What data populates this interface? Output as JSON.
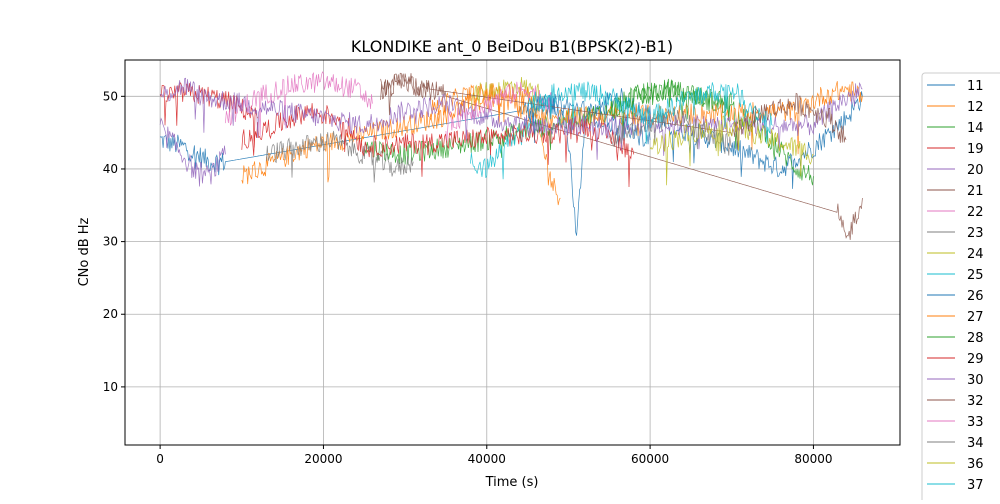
{
  "chart_data": {
    "type": "line",
    "title": "KLONDIKE ant_0 BeiDou B1(BPSK(2)-B1)",
    "xlabel": "Time (s)",
    "ylabel": "CNo dB Hz",
    "xlim": [
      -4300,
      90600
    ],
    "ylim": [
      2,
      55
    ],
    "xticks": [
      0,
      20000,
      40000,
      60000,
      80000
    ],
    "yticks": [
      10,
      20,
      30,
      40,
      50
    ],
    "grid": true,
    "legend_position": "right-outside",
    "series": [
      {
        "name": "11",
        "color": "#1f77b4",
        "x": [
          0,
          3000,
          6000,
          8000,
          44000,
          48000,
          50000,
          51000,
          52000,
          56000,
          62000,
          68000,
          72000,
          76000,
          80000,
          84000,
          86000
        ],
        "y": [
          44,
          43,
          41,
          41,
          48,
          49,
          45,
          30,
          47,
          50,
          46,
          44,
          42,
          40,
          43,
          47,
          50
        ]
      },
      {
        "name": "12",
        "color": "#ff7f0e",
        "x": [
          10000,
          14000,
          18000,
          22000,
          26000,
          30000,
          34000,
          38000,
          42000,
          46000,
          48000,
          49000
        ],
        "y": [
          39,
          41,
          43,
          44,
          45,
          46,
          47,
          49,
          50,
          47,
          38,
          36
        ]
      },
      {
        "name": "14",
        "color": "#2ca02c",
        "x": [
          25000,
          30000,
          35000,
          40000,
          55000,
          58000,
          62000,
          66000,
          70000,
          74000,
          78000,
          80000
        ],
        "y": [
          43,
          42,
          43,
          44,
          48,
          50,
          51,
          50,
          48,
          45,
          40,
          39
        ]
      },
      {
        "name": "19",
        "color": "#d62728",
        "x": [
          0,
          3000,
          6000,
          9000,
          12000
        ],
        "y": [
          50,
          50.5,
          50,
          49,
          47
        ]
      },
      {
        "name": "20",
        "color": "#9467bd",
        "x": [
          0,
          2000,
          4000,
          6000,
          8000
        ],
        "y": [
          46,
          43,
          40,
          39,
          42
        ]
      },
      {
        "name": "21",
        "color": "#8c564b",
        "x": [
          27000,
          30000,
          33000,
          35000,
          83000,
          84000,
          85000,
          86000
        ],
        "y": [
          51,
          52,
          51,
          50,
          34,
          30,
          33,
          36
        ]
      },
      {
        "name": "22",
        "color": "#e377c2",
        "x": [
          8000,
          12000,
          16000,
          20000,
          24000,
          26000
        ],
        "y": [
          47,
          50,
          51.5,
          52,
          51,
          49
        ]
      },
      {
        "name": "23",
        "color": "#7f7f7f",
        "x": [
          13000,
          17000,
          21000,
          25000,
          29000,
          31000
        ],
        "y": [
          42,
          43,
          44,
          42,
          40,
          41
        ]
      },
      {
        "name": "24",
        "color": "#bcbd22",
        "x": [
          38000,
          41000,
          44000,
          47000
        ],
        "y": [
          50,
          51,
          51.5,
          50
        ]
      },
      {
        "name": "25",
        "color": "#17becf",
        "x": [
          38000,
          40000,
          42000,
          44000,
          46000,
          48000
        ],
        "y": [
          41,
          40,
          43,
          45,
          48,
          50
        ]
      },
      {
        "name": "26",
        "color": "#1f77b4",
        "x": [
          45000,
          48000,
          52000,
          56000,
          60000
        ],
        "y": [
          48,
          49,
          48,
          46,
          44
        ]
      },
      {
        "name": "27",
        "color": "#ff7f0e",
        "x": [
          33000,
          37000,
          41000,
          45000,
          47000,
          78000,
          81000,
          84000,
          86000
        ],
        "y": [
          48,
          50,
          50.5,
          50,
          47,
          48,
          50,
          51,
          50
        ]
      },
      {
        "name": "28",
        "color": "#2ca02c",
        "x": [
          55000,
          58000,
          62000,
          66000,
          70000
        ],
        "y": [
          48,
          50,
          51,
          50,
          49
        ]
      },
      {
        "name": "29",
        "color": "#d62728",
        "x": [
          10000,
          14000,
          18000,
          22000,
          25000,
          48000,
          52000,
          56000,
          58000
        ],
        "y": [
          44,
          46,
          48,
          47,
          43,
          45,
          46,
          44,
          42
        ]
      },
      {
        "name": "30",
        "color": "#9467bd",
        "x": [
          0,
          3000,
          5000,
          25000,
          30000,
          35000,
          40000,
          45000,
          80000,
          83000,
          86000
        ],
        "y": [
          50,
          51.5,
          50,
          46,
          48,
          49,
          47,
          46,
          46,
          49,
          51
        ]
      },
      {
        "name": "32",
        "color": "#8c564b",
        "x": [
          27000,
          30000,
          33000,
          70000,
          74000,
          78000,
          82000,
          84000
        ],
        "y": [
          51,
          52,
          51,
          45,
          48,
          49,
          47,
          44
        ]
      },
      {
        "name": "33",
        "color": "#e377c2",
        "x": [
          35000,
          38000,
          42000,
          45000,
          48000
        ],
        "y": [
          46,
          48,
          50,
          51,
          49
        ]
      },
      {
        "name": "34",
        "color": "#7f7f7f",
        "x": [
          55000,
          59000,
          63000,
          67000,
          70000
        ],
        "y": [
          44,
          46,
          47,
          45,
          43
        ]
      },
      {
        "name": "36",
        "color": "#bcbd22",
        "x": [
          60000,
          65000,
          70000,
          75000,
          80000
        ],
        "y": [
          43,
          45,
          46,
          44,
          42
        ]
      },
      {
        "name": "37",
        "color": "#17becf",
        "x": [
          45000,
          50000,
          55000,
          60000,
          65000,
          70000,
          75000
        ],
        "y": [
          49,
          51,
          50,
          47,
          50,
          51,
          46
        ]
      }
    ]
  }
}
